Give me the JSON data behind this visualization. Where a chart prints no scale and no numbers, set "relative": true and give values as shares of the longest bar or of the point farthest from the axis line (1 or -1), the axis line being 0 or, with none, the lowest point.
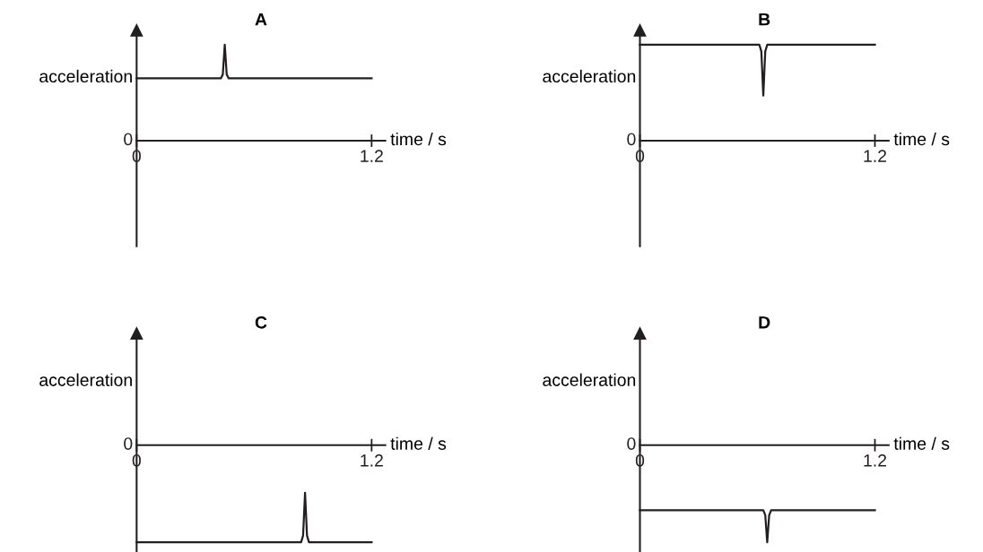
{
  "chart_data": [
    {
      "type": "line",
      "title": "A",
      "xlabel": "time / s",
      "ylabel": "acceleration",
      "relative": true,
      "xlim": [
        0,
        1.27
      ],
      "xticks": [
        0,
        1.2
      ],
      "annotations": [
        "0"
      ],
      "grid": false,
      "legend": false,
      "series": [
        {
          "color": "#231f20",
          "x": [
            0,
            0.43,
            0.44,
            0.45,
            0.46,
            0.47,
            1.2
          ],
          "values": [
            0.65,
            0.65,
            0.69,
            1,
            0.69,
            0.65,
            0.65
          ]
        }
      ]
    },
    {
      "type": "line",
      "title": "B",
      "xlabel": "time / s",
      "ylabel": "acceleration",
      "relative": true,
      "xlim": [
        0,
        1.27
      ],
      "xticks": [
        0,
        1.2
      ],
      "annotations": [
        "0"
      ],
      "grid": false,
      "legend": false,
      "series": [
        {
          "color": "#231f20",
          "x": [
            0,
            0.61,
            0.62,
            0.63,
            0.64,
            0.65,
            1.2
          ],
          "values": [
            1,
            1,
            0.93,
            0.47,
            0.93,
            1,
            1
          ]
        }
      ]
    },
    {
      "type": "line",
      "title": "C",
      "xlabel": "time / s",
      "ylabel": "acceleration",
      "relative": true,
      "xlim": [
        0,
        1.27
      ],
      "xticks": [
        0,
        1.2
      ],
      "annotations": [
        "0"
      ],
      "grid": false,
      "legend": false,
      "series": [
        {
          "color": "#231f20",
          "x": [
            0,
            0.84,
            0.85,
            0.86,
            0.87,
            0.88,
            1.2
          ],
          "values": [
            -1,
            -1,
            -0.93,
            -0.49,
            -0.93,
            -1,
            -1
          ]
        }
      ]
    },
    {
      "type": "line",
      "title": "D",
      "xlabel": "time / s",
      "ylabel": "acceleration",
      "relative": true,
      "xlim": [
        0,
        1.27
      ],
      "xticks": [
        0,
        1.2
      ],
      "annotations": [
        "0"
      ],
      "grid": false,
      "legend": false,
      "series": [
        {
          "color": "#231f20",
          "x": [
            0,
            0.63,
            0.64,
            0.65,
            0.66,
            0.67,
            1.2
          ],
          "values": [
            -0.67,
            -0.67,
            -0.72,
            -1,
            -0.72,
            -0.67,
            -0.67
          ]
        }
      ]
    }
  ]
}
